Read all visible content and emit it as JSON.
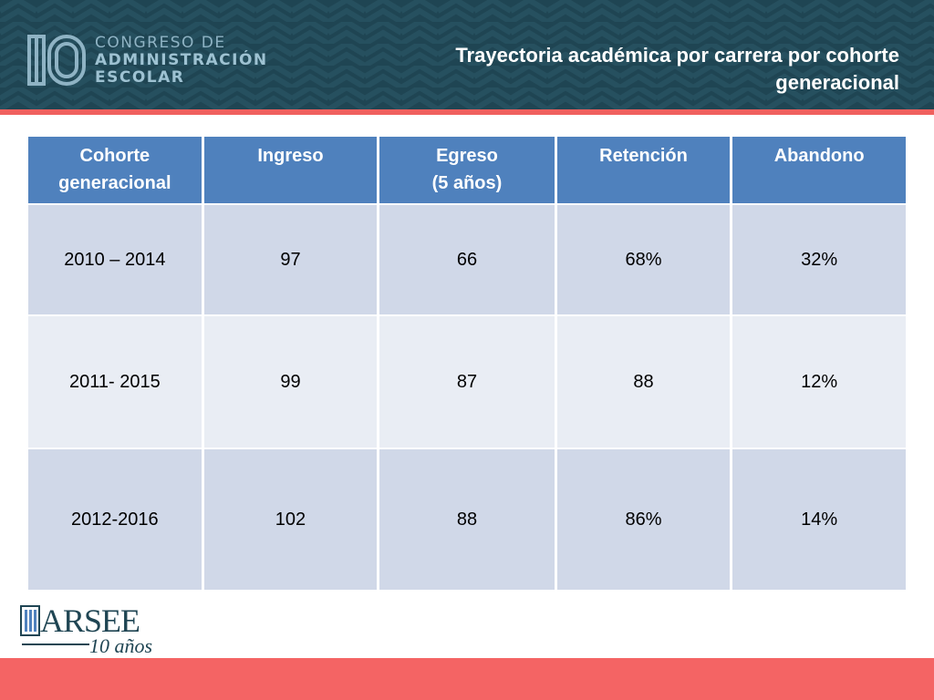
{
  "header": {
    "logo": {
      "line1": "CONGRESO DE",
      "line2": "ADMINISTRACIÓN",
      "line3": "ESCOLAR"
    },
    "title_line1": "Trayectoria académica por carrera por cohorte",
    "title_line2": "generacional"
  },
  "table": {
    "headers": [
      {
        "line1": "Cohorte",
        "line2": "generacional"
      },
      {
        "line1": "Ingreso",
        "line2": ""
      },
      {
        "line1": "Egreso",
        "line2": "(5 años)"
      },
      {
        "line1": "Retención",
        "line2": ""
      },
      {
        "line1": "Abandono",
        "line2": ""
      }
    ],
    "rows": [
      [
        "2010 – 2014",
        "97",
        "66",
        "68%",
        "32%"
      ],
      [
        "2011- 2015",
        "99",
        "87",
        "88",
        "12%"
      ],
      [
        "2012-2016",
        "102",
        "88",
        "86%",
        "14%"
      ]
    ]
  },
  "footer": {
    "logo_name": "ARSEE",
    "logo_years": "10 años"
  },
  "colors": {
    "header_bg": "#1f4553",
    "accent_stripe": "#f0605e",
    "table_header": "#4f81bd",
    "row_dark": "#d0d8e8",
    "row_light": "#e9edf4",
    "bottom_bar": "#f46464"
  }
}
